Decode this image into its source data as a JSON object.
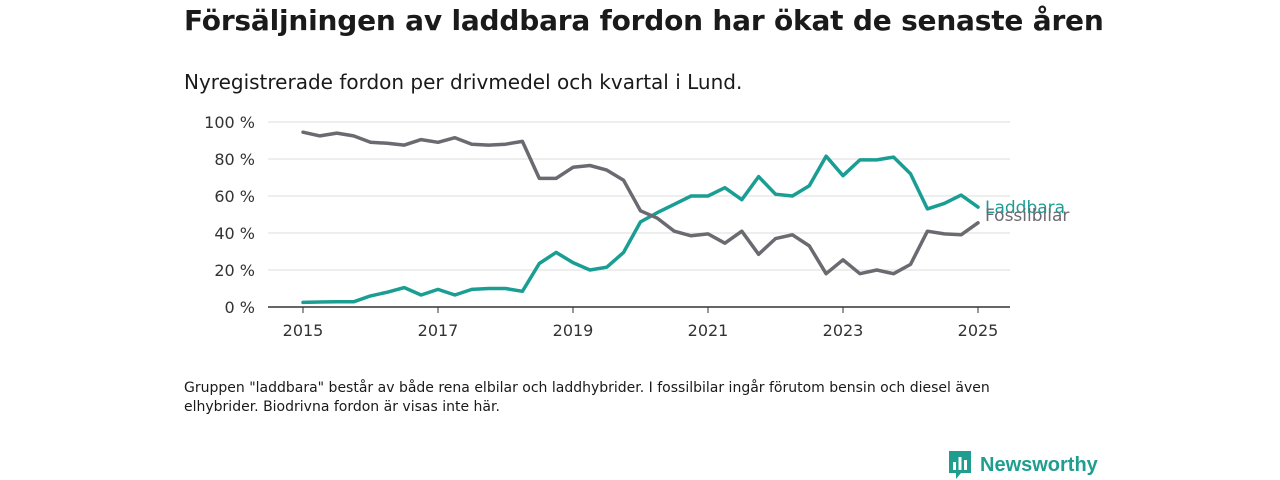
{
  "title": "Försäljningen av laddbara fordon har ökat de senaste åren",
  "subtitle": "Nyregistrerade fordon per drivmedel och kvartal i Lund.",
  "note": "Gruppen \"laddbara\" består av både rena elbilar och laddhybrider. I fossilbilar ingår förutom bensin och diesel även elhybrider. Biodrivna fordon är visas inte här.",
  "brand": {
    "name": "Newsworthy",
    "icon": "newsworthy-logo-icon",
    "color": "#1f9e8f"
  },
  "chart_data": {
    "type": "line",
    "xlim": [
      2015,
      2025
    ],
    "ylim": [
      0,
      100
    ],
    "x_ticks": [
      2015,
      2017,
      2019,
      2021,
      2023,
      2025
    ],
    "x_tick_labels": [
      "2015",
      "2017",
      "2019",
      "2021",
      "2023",
      "2025"
    ],
    "y_ticks": [
      0,
      20,
      40,
      60,
      80,
      100
    ],
    "y_tick_labels": [
      "0 %",
      "20 %",
      "40 %",
      "60 %",
      "80 %",
      "100 %"
    ],
    "grid": "horizontal",
    "x": [
      2015.0,
      2015.25,
      2015.5,
      2015.75,
      2016.0,
      2016.25,
      2016.5,
      2016.75,
      2017.0,
      2017.25,
      2017.5,
      2017.75,
      2018.0,
      2018.25,
      2018.5,
      2018.75,
      2019.0,
      2019.25,
      2019.5,
      2019.75,
      2020.0,
      2020.25,
      2020.5,
      2020.75,
      2021.0,
      2021.25,
      2021.5,
      2021.75,
      2022.0,
      2022.25,
      2022.5,
      2022.75,
      2023.0,
      2023.25,
      2023.5,
      2023.75,
      2024.0,
      2024.25,
      2024.5,
      2024.75,
      2025.0
    ],
    "series": [
      {
        "name": "Laddbara",
        "color": "#1a9e94",
        "values": [
          2.5,
          2.7,
          2.8,
          2.8,
          6,
          8,
          10.5,
          6.5,
          9.5,
          6.5,
          9.5,
          10,
          10,
          8.5,
          23.5,
          29.5,
          24,
          20,
          21.5,
          29.5,
          46,
          51,
          55.5,
          60,
          60,
          64.5,
          58,
          70.5,
          61,
          60,
          65.5,
          81.5,
          71,
          79.5,
          79.5,
          81,
          72,
          53,
          56,
          60.5,
          54
        ]
      },
      {
        "name": "Fossilbilar",
        "color": "#6b6a70",
        "values": [
          94.5,
          92.5,
          94,
          92.5,
          89,
          88.5,
          87.5,
          90.5,
          89,
          91.5,
          88,
          87.5,
          88,
          89.5,
          69.5,
          69.5,
          75.5,
          76.5,
          74,
          68.5,
          52,
          48,
          41,
          38.5,
          39.5,
          34.5,
          41,
          28.5,
          37,
          39,
          33,
          18,
          25.5,
          18,
          20,
          18,
          23,
          41,
          39.5,
          39,
          45.5
        ]
      }
    ]
  }
}
